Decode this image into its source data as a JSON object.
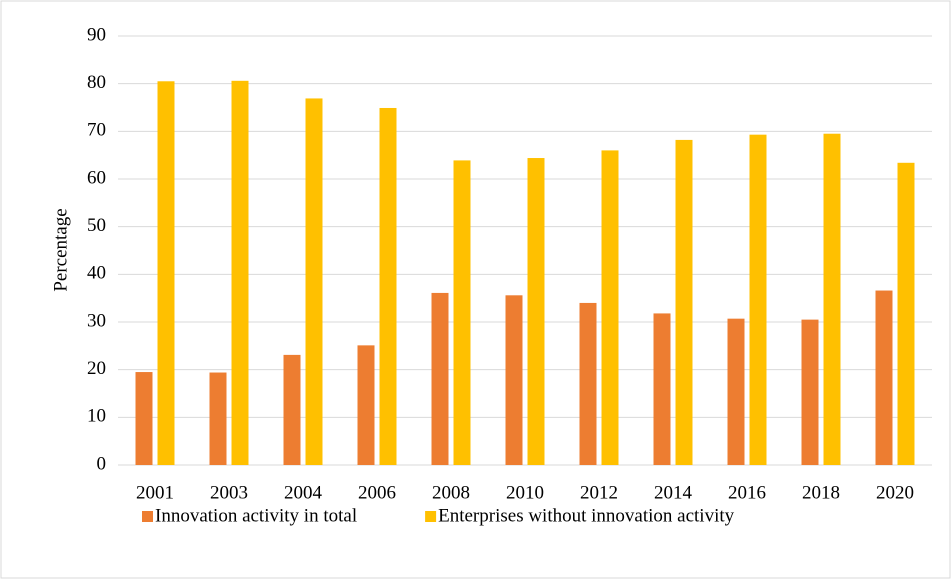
{
  "chart_data": {
    "type": "bar",
    "y_label": "Percentage",
    "categories": [
      "2001",
      "2003",
      "2004",
      "2006",
      "2008",
      "2010",
      "2012",
      "2014",
      "2016",
      "2018",
      "2020"
    ],
    "series": [
      {
        "name": "Innovation activity in total",
        "color": "#ed7d31",
        "values": [
          19.5,
          19.4,
          23.1,
          25.1,
          36.1,
          35.6,
          34.0,
          31.8,
          30.7,
          30.5,
          36.6
        ]
      },
      {
        "name": "Enterprises without innovation activity",
        "color": "#ffc000",
        "values": [
          80.5,
          80.6,
          76.9,
          74.9,
          63.9,
          64.4,
          66.0,
          68.2,
          69.3,
          69.5,
          63.4
        ]
      }
    ],
    "ylim": [
      0,
      90
    ],
    "yticks": [
      0,
      10,
      20,
      30,
      40,
      50,
      60,
      70,
      80,
      90
    ],
    "grid": true,
    "legend": "bottom"
  }
}
